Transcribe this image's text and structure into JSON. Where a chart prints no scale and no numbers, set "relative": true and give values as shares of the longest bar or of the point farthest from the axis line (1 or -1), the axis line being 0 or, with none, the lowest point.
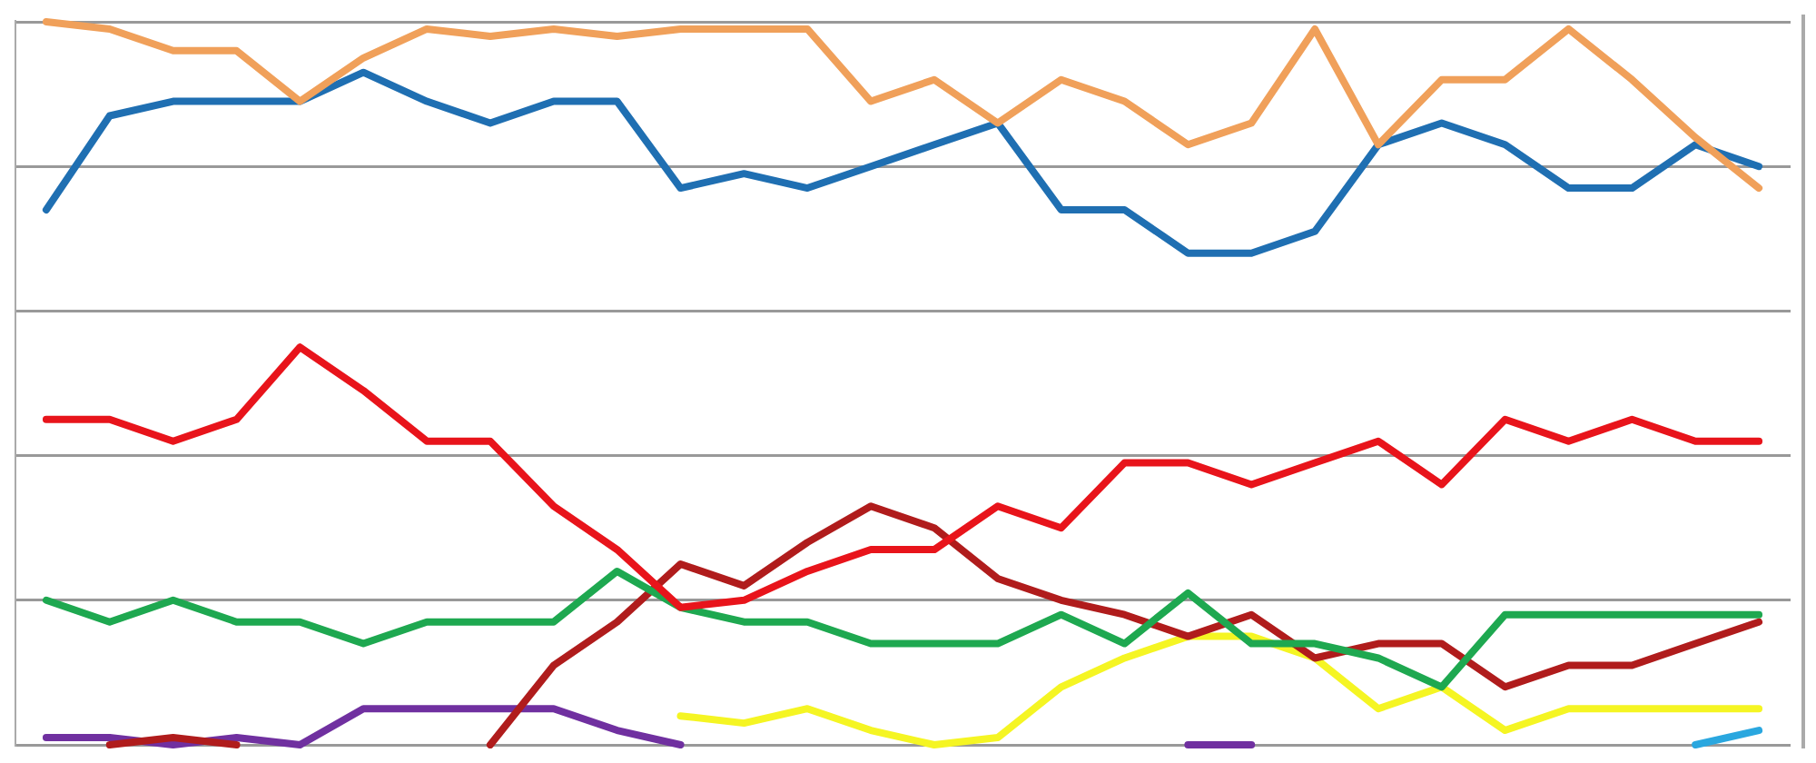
{
  "chart_data": {
    "type": "line",
    "relative": true,
    "grid": "y",
    "legend": false,
    "line_style": "solid",
    "marker": "none",
    "categories": [
      null,
      null,
      null,
      null,
      null,
      null,
      null,
      null,
      null,
      null,
      null,
      null,
      null,
      null,
      null,
      null,
      null,
      null,
      null,
      null,
      null,
      null,
      null,
      null,
      null,
      null,
      null,
      null
    ],
    "series": [
      {
        "color": "#f0a05a",
        "values": [
          1,
          0.99,
          0.96,
          0.96,
          0.89,
          0.95,
          0.99,
          0.98,
          0.99,
          0.98,
          0.99,
          0.99,
          0.99,
          0.89,
          0.92,
          0.86,
          0.92,
          0.89,
          0.83,
          0.86,
          0.99,
          0.83,
          0.92,
          0.92,
          0.99,
          0.92,
          0.84,
          0.77
        ]
      },
      {
        "color": "#1f6fb2",
        "values": [
          0.74,
          0.87,
          0.89,
          0.89,
          0.89,
          0.93,
          0.89,
          0.86,
          0.89,
          0.89,
          0.77,
          0.79,
          0.77,
          0.8,
          0.83,
          0.86,
          0.74,
          0.74,
          0.68,
          0.68,
          0.71,
          0.83,
          0.86,
          0.83,
          0.77,
          0.77,
          0.83,
          0.8
        ]
      },
      {
        "color": "#e8141b",
        "values": [
          0.45,
          0.45,
          0.42,
          0.45,
          0.55,
          0.49,
          0.42,
          0.42,
          0.33,
          0.27,
          0.19,
          0.2,
          0.24,
          0.27,
          0.27,
          0.33,
          0.3,
          0.39,
          0.39,
          0.36,
          0.39,
          0.42,
          0.36,
          0.45,
          0.42,
          0.45,
          0.42,
          0.42
        ]
      },
      {
        "color": "#1ea850",
        "values": [
          0.2,
          0.17,
          0.2,
          0.17,
          0.17,
          0.14,
          0.17,
          0.17,
          0.17,
          0.24,
          0.19,
          0.17,
          0.17,
          0.14,
          0.14,
          0.14,
          0.18,
          0.14,
          0.21,
          0.14,
          0.14,
          0.12,
          0.08,
          0.18,
          0.18,
          0.18,
          0.18,
          0.18
        ]
      },
      {
        "color": "#b01c1c",
        "values": [
          null,
          0,
          0.01,
          0,
          null,
          null,
          null,
          0,
          0.11,
          0.17,
          0.25,
          0.22,
          0.28,
          0.33,
          0.3,
          0.23,
          0.2,
          0.18,
          0.15,
          0.18,
          0.12,
          0.14,
          0.14,
          0.08,
          0.11,
          0.11,
          0.14,
          0.17
        ]
      },
      {
        "color": "#7030a0",
        "values": [
          0.01,
          0.01,
          0,
          0.01,
          0,
          0.05,
          0.05,
          0.05,
          0.05,
          0.02,
          0,
          null,
          null,
          null,
          null,
          null,
          null,
          null,
          0,
          0,
          null,
          null,
          null,
          null,
          null,
          null,
          null,
          null
        ]
      },
      {
        "color": "#f5f523",
        "values": [
          null,
          null,
          null,
          null,
          null,
          null,
          null,
          null,
          null,
          null,
          0.04,
          0.03,
          0.05,
          0.02,
          0,
          0.01,
          0.08,
          0.12,
          0.15,
          0.15,
          0.12,
          0.05,
          0.08,
          0.02,
          0.05,
          0.05,
          0.05,
          0.05
        ]
      },
      {
        "color": "#2aa7df",
        "values": [
          null,
          null,
          null,
          null,
          null,
          null,
          null,
          null,
          null,
          null,
          null,
          null,
          null,
          null,
          null,
          null,
          null,
          null,
          null,
          null,
          null,
          null,
          null,
          null,
          null,
          null,
          0,
          0.02
        ]
      }
    ]
  }
}
